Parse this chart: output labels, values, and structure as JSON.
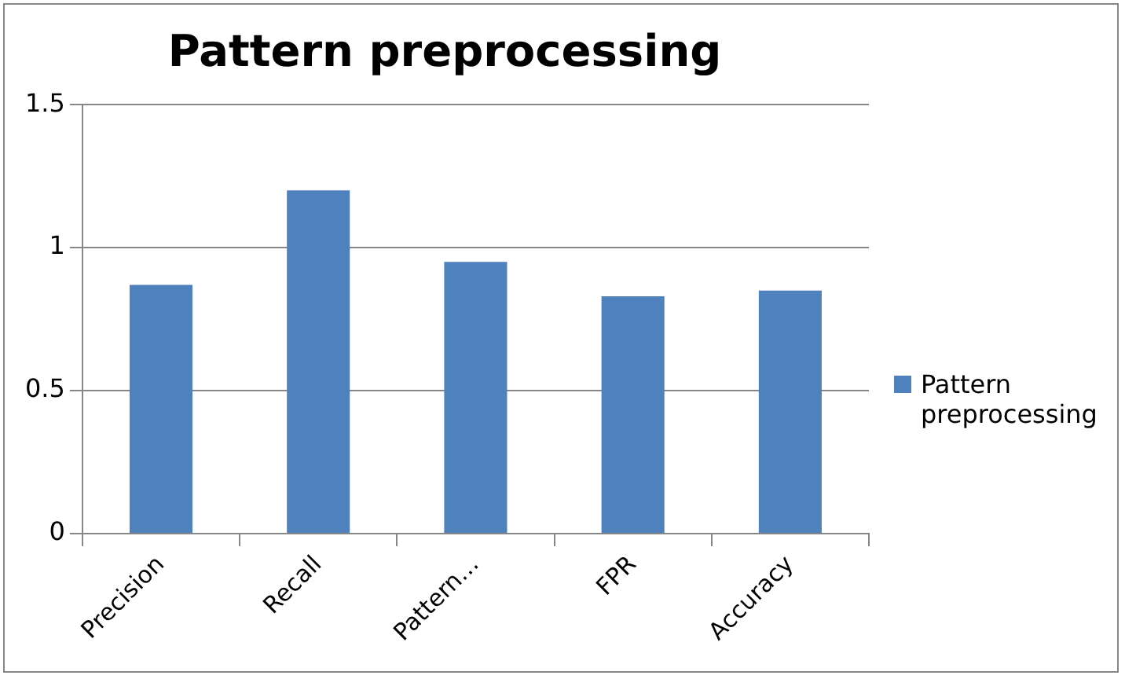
{
  "chart_data": {
    "type": "bar",
    "title": "Pattern preprocessing",
    "categories": [
      "Precision",
      "Recall",
      "Pattern…",
      "FPR",
      "Accuracy"
    ],
    "series": [
      {
        "name": "Pattern preprocessing",
        "color": "#4f81bd",
        "values": [
          0.87,
          1.2,
          0.95,
          0.83,
          0.85
        ]
      }
    ],
    "ylim": [
      0,
      1.5
    ],
    "yticks": [
      0,
      0.5,
      1,
      1.5
    ],
    "grid": "y",
    "legend": "right"
  }
}
